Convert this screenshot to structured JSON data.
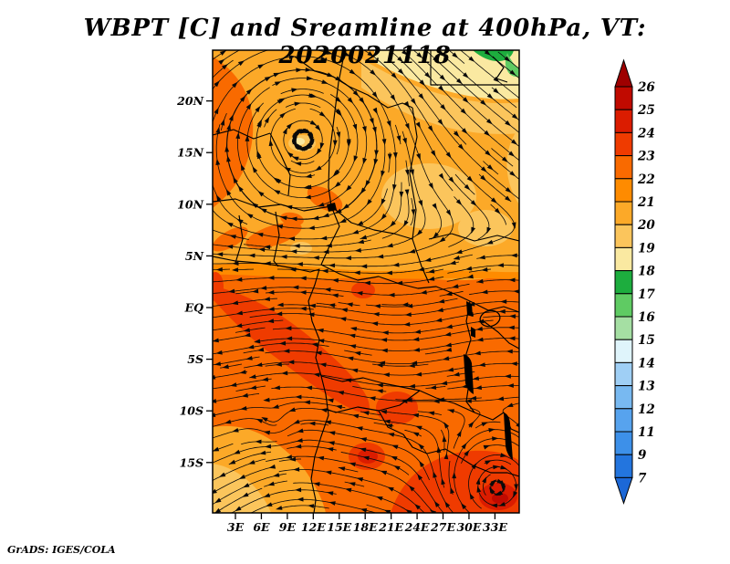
{
  "title": "WBPT [C] and Sreamline at 400hPa, VT: 2020021118",
  "credit": "GrADS: IGES/COLA",
  "chart_data": {
    "type": "streamline-shaded-map",
    "field": "WBPT [C]",
    "level": "400hPa",
    "valid_time": "2020021118",
    "x_axis": {
      "ticks": [
        {
          "label": "3E",
          "lon": 3
        },
        {
          "label": "6E",
          "lon": 6
        },
        {
          "label": "9E",
          "lon": 9
        },
        {
          "label": "12E",
          "lon": 12
        },
        {
          "label": "15E",
          "lon": 15
        },
        {
          "label": "18E",
          "lon": 18
        },
        {
          "label": "21E",
          "lon": 21
        },
        {
          "label": "24E",
          "lon": 24
        },
        {
          "label": "27E",
          "lon": 27
        },
        {
          "label": "30E",
          "lon": 30
        },
        {
          "label": "33E",
          "lon": 33
        }
      ],
      "lon_min": 0.4,
      "lon_max": 35.8
    },
    "y_axis": {
      "ticks": [
        {
          "label": "20N",
          "lat": 20
        },
        {
          "label": "15N",
          "lat": 15
        },
        {
          "label": "10N",
          "lat": 10
        },
        {
          "label": "5N",
          "lat": 5
        },
        {
          "label": "EQ",
          "lat": 0
        },
        {
          "label": "5S",
          "lat": -5
        },
        {
          "label": "10S",
          "lat": -10
        },
        {
          "label": "15S",
          "lat": -15
        }
      ],
      "lat_min": -19.9,
      "lat_max": 24.9
    },
    "colorbar": {
      "labels": [
        "26",
        "25",
        "24",
        "23",
        "22",
        "21",
        "20",
        "19",
        "18",
        "17",
        "16",
        "15",
        "14",
        "13",
        "12",
        "11",
        "9",
        "7"
      ],
      "colors": [
        "#9E0000",
        "#C00A00",
        "#DB1C00",
        "#EF3B00",
        "#F96A00",
        "#FE8B00",
        "#FCA928",
        "#FBC55C",
        "#FAE9A1",
        "#1DAD3E",
        "#5FCB63",
        "#A5DFA3",
        "#DFF4FB",
        "#9FCFF5",
        "#78B9F1",
        "#57A3EE",
        "#3D90E9",
        "#2375DE",
        "#1C68D7"
      ]
    },
    "vortices": [
      {
        "name": "saharan-vortex",
        "lon": 10.9,
        "lat": 16.5,
        "rotation": "clockwise",
        "radius_px": 75,
        "strength": 2.2
      },
      {
        "name": "se-cyclone",
        "lon": 33.3,
        "lat": -18.2,
        "rotation": "clockwise",
        "radius_px": 55,
        "strength": 2.6
      },
      {
        "name": "weak-eddy",
        "lon": 7.6,
        "lat": -11.5,
        "rotation": "clockwise",
        "radius_px": 18,
        "strength": 0.6
      }
    ]
  }
}
